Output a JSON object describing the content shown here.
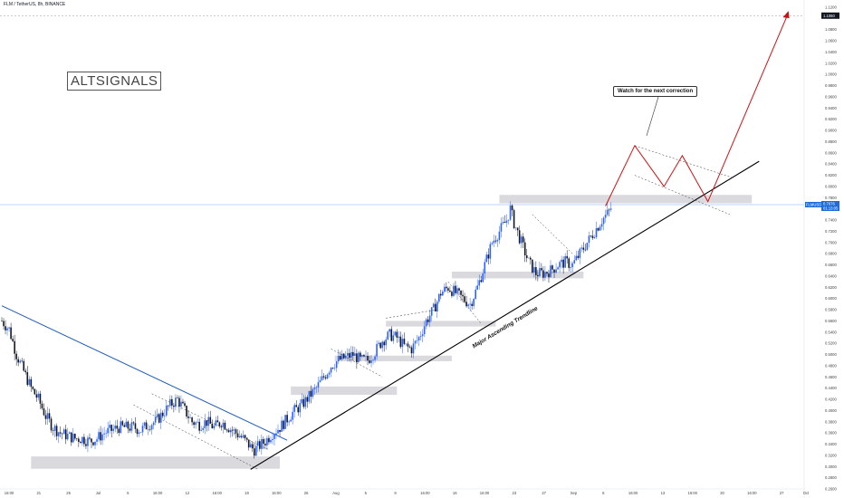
{
  "header": {
    "title": "FLM / TetherUS, 8h, BINANCE"
  },
  "logo": {
    "text": "ALTSIGNALS"
  },
  "annotations": {
    "callout": "Watch for the next correction",
    "trendline_label": "Major Ascending Trendline"
  },
  "price_axis": {
    "current_price": "0.7676",
    "countdown": "01:13:05",
    "symbol_tag": "FLMUSDT",
    "top_badge": "1.1060"
  },
  "colors": {
    "up": "#2962ff",
    "down": "#131722",
    "downtrend_line": "#1e5bbf",
    "trendline": "#000000",
    "projection": "#cc1111",
    "zones": "#d3d4d8",
    "price_line": "#7aa8f0"
  },
  "chart_data": {
    "type": "candlestick",
    "title": "FLM / TetherUS, 8h, BINANCE",
    "y_ticks": [
      "1.1200",
      "1.0800",
      "1.0600",
      "1.0400",
      "1.0200",
      "1.0000",
      "0.9800",
      "0.9600",
      "0.9400",
      "0.9200",
      "0.9000",
      "0.8800",
      "0.8600",
      "0.8400",
      "0.8200",
      "0.8000",
      "0.7800",
      "0.7600",
      "0.7400",
      "0.7200",
      "0.7000",
      "0.6800",
      "0.6600",
      "0.6400",
      "0.6200",
      "0.6000",
      "0.5800",
      "0.5600",
      "0.5400",
      "0.5200",
      "0.5000",
      "0.4800",
      "0.4600",
      "0.4400",
      "0.4200",
      "0.4000",
      "0.3800",
      "0.3600",
      "0.3400",
      "0.3200",
      "0.3000",
      "0.2800",
      "0.2600"
    ],
    "ylim": [
      0.26,
      1.12
    ],
    "x_ticks": [
      "16:00",
      "21",
      "25",
      "Jul",
      "5",
      "16:00",
      "12",
      "16:00",
      "19",
      "16:00",
      "26",
      "Aug",
      "5",
      "9",
      "16:00",
      "16",
      "16:00",
      "23",
      "27",
      "Sep",
      "6",
      "16:00",
      "13",
      "16:00",
      "20",
      "16:00",
      "27",
      "Oct"
    ],
    "candle_close_path": [
      [
        0,
        0.56
      ],
      [
        4,
        0.545
      ],
      [
        8,
        0.5
      ],
      [
        12,
        0.47
      ],
      [
        16,
        0.44
      ],
      [
        20,
        0.42
      ],
      [
        24,
        0.39
      ],
      [
        28,
        0.37
      ],
      [
        32,
        0.36
      ],
      [
        36,
        0.355
      ],
      [
        40,
        0.35
      ],
      [
        44,
        0.35
      ],
      [
        48,
        0.345
      ],
      [
        52,
        0.35
      ],
      [
        56,
        0.36
      ],
      [
        60,
        0.365
      ],
      [
        64,
        0.37
      ],
      [
        68,
        0.37
      ],
      [
        72,
        0.37
      ],
      [
        76,
        0.365
      ],
      [
        80,
        0.375
      ],
      [
        84,
        0.38
      ],
      [
        88,
        0.395
      ],
      [
        92,
        0.41
      ],
      [
        96,
        0.42
      ],
      [
        100,
        0.4
      ],
      [
        104,
        0.38
      ],
      [
        108,
        0.375
      ],
      [
        112,
        0.38
      ],
      [
        116,
        0.37
      ],
      [
        120,
        0.38
      ],
      [
        124,
        0.37
      ],
      [
        128,
        0.36
      ],
      [
        132,
        0.35
      ],
      [
        136,
        0.335
      ],
      [
        138,
        0.33
      ],
      [
        140,
        0.335
      ],
      [
        144,
        0.345
      ],
      [
        148,
        0.36
      ],
      [
        152,
        0.37
      ],
      [
        156,
        0.385
      ],
      [
        160,
        0.4
      ],
      [
        164,
        0.41
      ],
      [
        168,
        0.425
      ],
      [
        172,
        0.44
      ],
      [
        176,
        0.46
      ],
      [
        180,
        0.48
      ],
      [
        184,
        0.49
      ],
      [
        188,
        0.495
      ],
      [
        192,
        0.5
      ],
      [
        196,
        0.49
      ],
      [
        200,
        0.49
      ],
      [
        204,
        0.505
      ],
      [
        208,
        0.525
      ],
      [
        212,
        0.535
      ],
      [
        216,
        0.53
      ],
      [
        220,
        0.515
      ],
      [
        224,
        0.51
      ],
      [
        228,
        0.53
      ],
      [
        232,
        0.56
      ],
      [
        236,
        0.58
      ],
      [
        240,
        0.61
      ],
      [
        244,
        0.62
      ],
      [
        248,
        0.61
      ],
      [
        252,
        0.6
      ],
      [
        256,
        0.59
      ],
      [
        260,
        0.62
      ],
      [
        264,
        0.66
      ],
      [
        268,
        0.7
      ],
      [
        272,
        0.72
      ],
      [
        276,
        0.74
      ],
      [
        278,
        0.76
      ],
      [
        280,
        0.735
      ],
      [
        284,
        0.7
      ],
      [
        288,
        0.665
      ],
      [
        292,
        0.645
      ],
      [
        296,
        0.645
      ],
      [
        300,
        0.65
      ],
      [
        304,
        0.66
      ],
      [
        308,
        0.665
      ],
      [
        312,
        0.66
      ],
      [
        316,
        0.68
      ],
      [
        320,
        0.7
      ],
      [
        324,
        0.72
      ],
      [
        328,
        0.74
      ],
      [
        332,
        0.755
      ],
      [
        334,
        0.7676
      ]
    ],
    "trendline": {
      "label": "Major Ascending Trendline",
      "from": [
        136,
        0.295
      ],
      "to": [
        414,
        0.845
      ]
    },
    "downtrend_line": {
      "from": [
        0,
        0.587
      ],
      "to": [
        156,
        0.347
      ]
    },
    "projection_path": [
      [
        330,
        0.765
      ],
      [
        346,
        0.873
      ],
      [
        362,
        0.8
      ],
      [
        372,
        0.855
      ],
      [
        386,
        0.773
      ],
      [
        430,
        1.11
      ]
    ],
    "support_resistance_zones": [
      {
        "x": [
          16,
          152
        ],
        "y": [
          0.296,
          0.318
        ]
      },
      {
        "x": [
          158,
          216
        ],
        "y": [
          0.428,
          0.443
        ]
      },
      {
        "x": [
          182,
          246
        ],
        "y": [
          0.488,
          0.498
        ]
      },
      {
        "x": [
          210,
          270
        ],
        "y": [
          0.55,
          0.56
        ]
      },
      {
        "x": [
          246,
          318
        ],
        "y": [
          0.636,
          0.648
        ]
      },
      {
        "x": [
          272,
          410
        ],
        "y": [
          0.77,
          0.785
        ]
      }
    ]
  }
}
